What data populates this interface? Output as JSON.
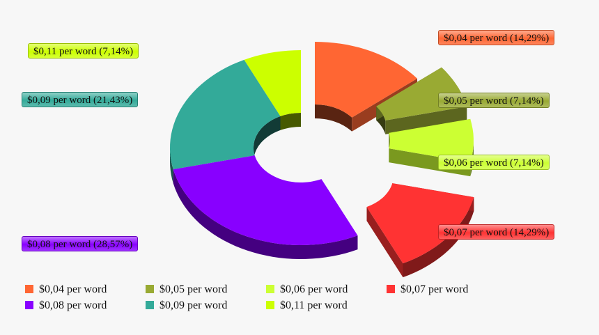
{
  "chart_data": {
    "type": "pie",
    "subtype": "3d-donut-exploded",
    "title": "",
    "categories": [
      "$0,04 per word",
      "$0,05 per word",
      "$0,06 per word",
      "$0,07 per word",
      "$0,08 per word",
      "$0,09 per word",
      "$0,11 per word"
    ],
    "values": [
      14.29,
      7.14,
      7.14,
      14.29,
      28.57,
      21.43,
      7.14
    ],
    "colors": [
      "#ff6633",
      "#99aa33",
      "#ccff33",
      "#ff3333",
      "#8800ff",
      "#33aa99",
      "#ccff00"
    ],
    "exploded": [
      true,
      true,
      true,
      true,
      false,
      false,
      false
    ],
    "legend_position": "bottom"
  },
  "labels": [
    {
      "text": "$0,04 per word (14,29%)",
      "color": "#ff6633"
    },
    {
      "text": "$0,05 per word (7,14%)",
      "color": "#99aa33"
    },
    {
      "text": "$0,06 per word (7,14%)",
      "color": "#ccff33"
    },
    {
      "text": "$0,07 per word (14,29%)",
      "color": "#ff3333"
    },
    {
      "text": "$0,08 per word (28,57%)",
      "color": "#8800ff"
    },
    {
      "text": "$0,09 per word (21,43%)",
      "color": "#33aa99"
    },
    {
      "text": "$0,11 per word (7,14%)",
      "color": "#ccff00"
    }
  ],
  "legend": [
    {
      "label": "$0,04 per word",
      "color": "#ff6633"
    },
    {
      "label": "$0,05 per word",
      "color": "#99aa33"
    },
    {
      "label": "$0,06 per word",
      "color": "#ccff33"
    },
    {
      "label": "$0,07 per word",
      "color": "#ff3333"
    },
    {
      "label": "$0,08 per word",
      "color": "#8800ff"
    },
    {
      "label": "$0,09 per word",
      "color": "#33aa99"
    },
    {
      "label": "$0,11 per word",
      "color": "#ccff00"
    }
  ]
}
